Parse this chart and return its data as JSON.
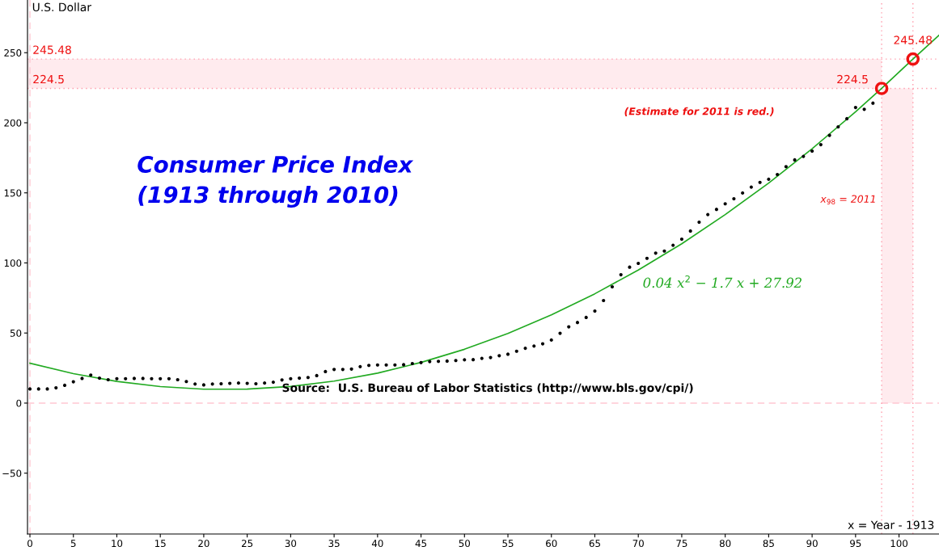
{
  "chart_data": {
    "type": "scatter",
    "title": "Consumer Price Index\n(1913 through 2010)",
    "xlabel": "x = Year - 1913",
    "ylabel": "U.S. Dollar",
    "xlim": [
      -0.28,
      104.6
    ],
    "ylim": [
      -93.4,
      287.6
    ],
    "xticks": [
      0,
      5,
      10,
      15,
      20,
      25,
      30,
      35,
      40,
      45,
      50,
      55,
      60,
      65,
      70,
      75,
      80,
      85,
      90,
      95,
      100
    ],
    "yticks": [
      -50,
      0,
      50,
      100,
      150,
      200,
      250
    ],
    "grid": false,
    "legend": false,
    "marker": "circle",
    "annotations": [
      "(Estimate for 2011 is red.)",
      "Source:  U.S. Bureau of Labor Statistics (http://www.bls.gov/cpi/)"
    ],
    "series": [
      {
        "color": "#000000",
        "x": [
          0,
          1,
          2,
          3,
          4,
          5,
          6,
          7,
          8,
          9,
          10,
          11,
          12,
          13,
          14,
          15,
          16,
          17,
          18,
          19,
          20,
          21,
          22,
          23,
          24,
          25,
          26,
          27,
          28,
          29,
          30,
          31,
          32,
          33,
          34,
          35,
          36,
          37,
          38,
          39,
          40,
          41,
          42,
          43,
          44,
          45,
          46,
          47,
          48,
          49,
          50,
          51,
          52,
          53,
          54,
          55,
          56,
          57,
          58,
          59,
          60,
          61,
          62,
          63,
          64,
          65,
          66,
          67,
          68,
          69,
          70,
          71,
          72,
          73,
          74,
          75,
          76,
          77,
          78,
          79,
          80,
          81,
          82,
          83,
          84,
          85,
          86,
          87,
          88,
          89,
          90,
          91,
          92,
          93,
          94,
          95,
          96,
          97
        ],
        "values": [
          10.1,
          10.1,
          10.1,
          10.9,
          12.7,
          15.2,
          17.6,
          20.0,
          17.8,
          16.7,
          17.4,
          17.4,
          17.6,
          17.6,
          17.4,
          17.4,
          17.4,
          16.7,
          15.4,
          13.6,
          13.0,
          13.6,
          13.8,
          14.1,
          14.3,
          14.1,
          13.8,
          14.3,
          14.9,
          16.5,
          17.4,
          17.8,
          18.3,
          19.6,
          22.5,
          24.0,
          24.0,
          24.3,
          26.0,
          26.9,
          27.2,
          27.2,
          27.2,
          27.4,
          28.2,
          28.9,
          29.6,
          29.8,
          30.0,
          30.4,
          30.9,
          31.0,
          31.9,
          32.5,
          33.8,
          34.9,
          37.0,
          39.1,
          40.7,
          42.3,
          45.0,
          49.8,
          54.4,
          57.5,
          61.1,
          65.7,
          73.2,
          83.0,
          91.6,
          97.0,
          99.7,
          103.3,
          107.0,
          108.5,
          112.6,
          117.0,
          122.8,
          129.1,
          134.5,
          138.2,
          142.2,
          145.8,
          149.9,
          154.1,
          157.5,
          159.7,
          163.1,
          168.7,
          173.5,
          176.0,
          179.8,
          184.4,
          191.0,
          197.1,
          202.9,
          210.9,
          209.6,
          214.0
        ]
      },
      {
        "type": "line",
        "name": "0.04 x$^{2}$ − 1.7 x + 27.92",
        "color": "#22aa22",
        "marker": "none",
        "x": [
          0,
          5,
          10,
          15,
          20,
          25,
          30,
          35,
          40,
          45,
          50,
          55,
          60,
          65,
          70,
          75,
          80,
          85,
          90,
          95,
          98,
          101.6,
          104.6
        ],
        "values": [
          28.5,
          21.0,
          15.5,
          11.8,
          9.9,
          10.0,
          11.9,
          15.7,
          21.4,
          29.0,
          38.4,
          49.7,
          62.9,
          78.0,
          94.9,
          113.7,
          134.5,
          157.0,
          181.5,
          207.8,
          224.5,
          245.5,
          262.4
        ]
      },
      {
        "type": "scatter",
        "color": "#ee1111",
        "marker": "circle",
        "x": [
          98,
          101.6
        ],
        "values": [
          224.5,
          245.48
        ],
        "value_labels": [
          "224.5",
          "245.48"
        ]
      }
    ],
    "ref_lines": [
      {
        "axis": "x",
        "value": 0,
        "color": "#ffc8d2",
        "line_style": "dashed"
      },
      {
        "axis": "y",
        "value": 0,
        "color": "#ffc8d2",
        "line_style": "dashed"
      },
      {
        "axis": "y",
        "value": 245.48,
        "label": "245.48",
        "color": "#ff9aaa",
        "line_style": "dotted"
      },
      {
        "axis": "y",
        "value": 224.5,
        "label": "224.5",
        "color": "#ff9aaa",
        "line_style": "dotted"
      },
      {
        "axis": "x",
        "value": 98,
        "label": "x$_{98}$ = 2011",
        "color": "#ff9aaa",
        "line_style": "dotted"
      },
      {
        "axis": "x",
        "value": 101.6,
        "color": "#ff9aaa",
        "line_style": "dotted"
      }
    ],
    "bands": [
      {
        "axis": "y",
        "from": 224.5,
        "to": 245.48,
        "color": "#ffebee"
      },
      {
        "axis": "x",
        "from": 98,
        "to": 101.6,
        "color": "#ffebee"
      }
    ]
  }
}
